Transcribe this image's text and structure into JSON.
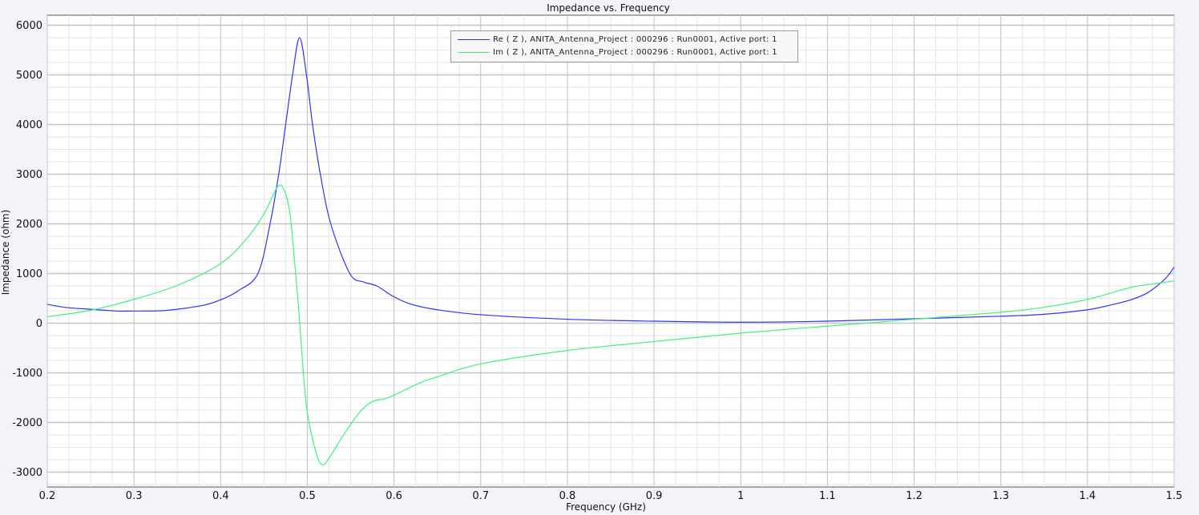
{
  "chart_data": {
    "type": "line",
    "title": "Impedance vs. Frequency",
    "xlabel": "Frequency (GHz)",
    "ylabel": "Impedance (ohm)",
    "xlim": [
      0.2,
      1.5
    ],
    "ylim": [
      -3250,
      6200
    ],
    "x_ticks": [
      0.2,
      0.3,
      0.4,
      0.5,
      0.6,
      0.7,
      0.8,
      0.9,
      1,
      1.1,
      1.2,
      1.3,
      1.4,
      1.5
    ],
    "x_tick_labels": [
      "0.2",
      "0.3",
      "0.4",
      "0.5",
      "0.6",
      "0.7",
      "0.8",
      "0.9",
      "1",
      "1.1",
      "1.2",
      "1.3",
      "1.4",
      "1.5"
    ],
    "y_ticks": [
      -3000,
      -2000,
      -1000,
      0,
      1000,
      2000,
      3000,
      4000,
      5000,
      6000
    ],
    "y_tick_labels": [
      "-3000",
      "-2000",
      "-1000",
      "0",
      "1000",
      "2000",
      "3000",
      "4000",
      "5000",
      "6000"
    ],
    "grid": true,
    "legend_position": "top-center",
    "series": [
      {
        "name": "Re ( Z ), ANITA_Antenna_Project : 000296 : Run0001, Active port: 1",
        "color": "#3030ff",
        "x": [
          0.2,
          0.22,
          0.25,
          0.28,
          0.3,
          0.33,
          0.35,
          0.38,
          0.4,
          0.42,
          0.443,
          0.457,
          0.467,
          0.475,
          0.483,
          0.491,
          0.499,
          0.506,
          0.515,
          0.527,
          0.549,
          0.565,
          0.58,
          0.6,
          0.62,
          0.65,
          0.7,
          0.8,
          0.9,
          1.0,
          1.1,
          1.2,
          1.3,
          1.35,
          1.4,
          1.43,
          1.45,
          1.47,
          1.49,
          1.5
        ],
        "y": [
          380,
          320,
          280,
          245,
          245,
          250,
          280,
          360,
          470,
          650,
          1000,
          2000,
          3000,
          4000,
          5000,
          5750,
          5000,
          4000,
          3000,
          2000,
          1000,
          830,
          750,
          530,
          380,
          270,
          170,
          80,
          40,
          20,
          40,
          90,
          140,
          180,
          270,
          380,
          470,
          620,
          900,
          1130
        ]
      },
      {
        "name": "Im ( Z ), ANITA_Antenna_Project : 000296 : Run0001, Active port: 1",
        "color": "#40f080",
        "x": [
          0.2,
          0.25,
          0.3,
          0.35,
          0.4,
          0.43,
          0.45,
          0.466,
          0.474,
          0.48,
          0.485,
          0.49,
          0.495,
          0.5,
          0.51,
          0.517,
          0.525,
          0.54,
          0.56,
          0.575,
          0.59,
          0.6,
          0.63,
          0.65,
          0.7,
          0.8,
          0.9,
          1.0,
          1.1,
          1.2,
          1.3,
          1.35,
          1.4,
          1.45,
          1.48,
          1.5
        ],
        "y": [
          130,
          260,
          480,
          760,
          1200,
          1700,
          2200,
          2755,
          2650,
          2200,
          1300,
          300,
          -900,
          -1800,
          -2600,
          -2850,
          -2720,
          -2300,
          -1800,
          -1580,
          -1520,
          -1450,
          -1200,
          -1080,
          -820,
          -550,
          -370,
          -200,
          -60,
          80,
          220,
          320,
          480,
          720,
          800,
          850
        ]
      }
    ]
  }
}
